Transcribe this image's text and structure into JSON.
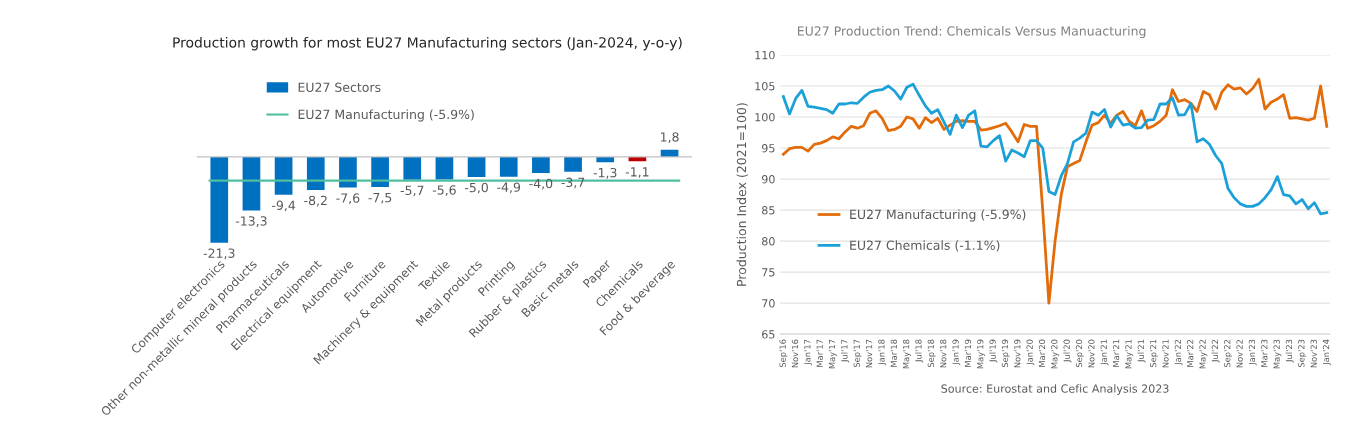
{
  "chart_data": [
    {
      "type": "bar",
      "title": "Production growth for most EU27 Manufacturing sectors (Jan-2024, y-o-y)",
      "categories": [
        "Computer electronics",
        "Other non-metallic mineral products",
        "Pharmaceuticals",
        "Electrical equipment",
        "Automotive",
        "Furniture",
        "Machinery & equipment",
        "Textile",
        "Metal products",
        "Printing",
        "Rubber & plastics",
        "Basic metals",
        "Paper",
        "Chemicals",
        "Food & beverage"
      ],
      "series": [
        {
          "name": "EU27 Sectors",
          "color": "#0070c0",
          "colors": [
            "#0070c0",
            "#0070c0",
            "#0070c0",
            "#0070c0",
            "#0070c0",
            "#0070c0",
            "#0070c0",
            "#0070c0",
            "#0070c0",
            "#0070c0",
            "#0070c0",
            "#0070c0",
            "#0070c0",
            "#c00000",
            "#0070c0"
          ],
          "values": [
            -21.3,
            -13.3,
            -9.4,
            -8.2,
            -7.6,
            -7.5,
            -5.7,
            -5.6,
            -5.0,
            -4.9,
            -4.0,
            -3.7,
            -1.3,
            -1.1,
            1.8
          ],
          "value_labels": [
            "-21,3",
            "-13,3",
            "-9,4",
            "-8,2",
            "-7,6",
            "-7,5",
            "-5,7",
            "-5,6",
            "-5,0",
            "-4,9",
            "-4,0",
            "-3,7",
            "-1,3",
            "-1,1",
            "1,8"
          ]
        }
      ],
      "ref_lines": [
        {
          "axis": "y",
          "value": -5.9,
          "label": "EU27 Manufacturing (-5.9%)",
          "color": "#4fbfa0"
        }
      ],
      "legend": "top left",
      "tick_labels": "x"
    },
    {
      "type": "line",
      "title": "EU27 Production Trend: Chemicals Versus Manuacturing",
      "ylabel": "Production Index (2021=100)",
      "categories": [
        "Sep'16",
        null,
        "Nov'16",
        null,
        "Jan'17",
        null,
        "Mar'17",
        null,
        "May'17",
        null,
        "Jul'17",
        null,
        "Sep'17",
        null,
        "Nov'17",
        null,
        "Jan'18",
        null,
        "Mar'18",
        null,
        "May'18",
        null,
        "Jul'18",
        null,
        "Sep'18",
        null,
        "Nov'18",
        null,
        "Jan'19",
        null,
        "Mar'19",
        null,
        "May'19",
        null,
        "Jul'19",
        null,
        "Sep'19",
        null,
        "Nov'19",
        null,
        "Jan'20",
        null,
        "Mar'20",
        null,
        "May'20",
        null,
        "Jul'20",
        null,
        "Sep'20",
        null,
        "Nov'20",
        null,
        "Jan'21",
        null,
        "Mar'21",
        null,
        "May'21",
        null,
        "Jul'21",
        null,
        "Sep'21",
        null,
        "Nov'21",
        null,
        "Jan'22",
        null,
        "Mar'22",
        null,
        "May'22",
        null,
        "Jul'22",
        null,
        "Sep'22",
        null,
        "Nov'22",
        null,
        "Jan'23",
        null,
        "Mar'23",
        null,
        "May'23",
        null,
        "Jul'23",
        null,
        "Sep'23",
        null,
        "Nov'23",
        null,
        "Jan'24"
      ],
      "series": [
        {
          "name": "EU27 Manufacturing (-5.9%)",
          "color": "#e36c0a",
          "values": [
            94,
            94.9,
            95.1,
            95.1,
            94.5,
            95.6,
            95.8,
            96.2,
            96.8,
            96.5,
            97.6,
            98.5,
            98.2,
            98.6,
            100.6,
            101,
            99.8,
            97.8,
            98,
            98.5,
            100,
            99.7,
            98.2,
            99.9,
            99.1,
            99.8,
            98,
            98.7,
            99.3,
            99.4,
            99.3,
            99.3,
            97.9,
            98,
            98.3,
            98.6,
            99,
            97.6,
            96,
            98.8,
            98.5,
            98.5,
            85,
            70,
            80,
            87.5,
            92,
            92.5,
            93,
            96,
            98.7,
            99.1,
            100.3,
            99,
            100.3,
            100.9,
            99.3,
            98.6,
            101,
            98.2,
            98.6,
            99.3,
            100.3,
            104.4,
            102.5,
            102.8,
            102.2,
            100.9,
            104.1,
            103.6,
            101.3,
            104,
            105.2,
            104.5,
            104.7,
            103.7,
            104.6,
            106.1,
            101.3,
            102.4,
            102.9,
            103.6,
            99.8,
            99.9,
            99.7,
            99.5,
            99.8,
            105,
            98.5
          ]
        },
        {
          "name": "EU27 Chemicals (-1.1%)",
          "color": "#1ba1d8",
          "values": [
            103.3,
            100.5,
            103,
            104.3,
            101.7,
            101.6,
            101.4,
            101.2,
            100.6,
            102.1,
            102.1,
            102.3,
            102.2,
            103.2,
            104,
            104.3,
            104.4,
            105,
            104.2,
            102.9,
            104.8,
            105.3,
            103.5,
            101.8,
            100.6,
            101.2,
            99.2,
            97.2,
            100.3,
            98.3,
            100.3,
            101,
            95.3,
            95.2,
            96.2,
            97,
            92.9,
            94.7,
            94.2,
            93.6,
            96.2,
            96.2,
            95,
            88,
            87.5,
            90.5,
            92.5,
            96,
            96.6,
            97.4,
            100.8,
            100.3,
            101.2,
            98.4,
            100.2,
            98.7,
            98.9,
            98.2,
            98.3,
            99.5,
            99.6,
            102.1,
            102.1,
            103.1,
            100.3,
            100.4,
            102.2,
            96,
            96.5,
            95.6,
            93.8,
            92.5,
            88.5,
            87,
            86,
            85.6,
            85.6,
            86,
            87,
            88.3,
            90.4,
            87.5,
            87.3,
            86,
            86.7,
            85.2,
            86.2,
            84.4,
            84.6
          ]
        }
      ],
      "ylim": [
        65,
        110
      ],
      "yticks": [
        65,
        70,
        75,
        80,
        85,
        90,
        95,
        100,
        105,
        110
      ],
      "grid": "y",
      "legend": "left",
      "annotations": [
        "Source: Eurostat and Cefic Analysis 2023"
      ]
    }
  ]
}
